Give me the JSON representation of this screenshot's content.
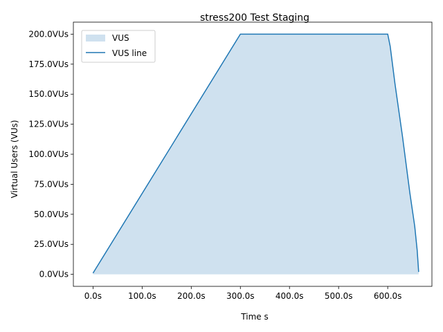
{
  "chart_data": {
    "type": "area",
    "title": "stress200 Test Staging",
    "xlabel": "Time s",
    "ylabel": "Virtual Users (VUs)",
    "xlim": [
      -40,
      690
    ],
    "ylim": [
      -10,
      210
    ],
    "x_ticks": [
      {
        "value": 0,
        "label": "0.0s"
      },
      {
        "value": 100,
        "label": "100.0s"
      },
      {
        "value": 200,
        "label": "200.0s"
      },
      {
        "value": 300,
        "label": "300.0s"
      },
      {
        "value": 400,
        "label": "400.0s"
      },
      {
        "value": 500,
        "label": "500.0s"
      },
      {
        "value": 600,
        "label": "600.0s"
      }
    ],
    "y_ticks": [
      {
        "value": 0,
        "label": "0.0VUs"
      },
      {
        "value": 25,
        "label": "25.0VUs"
      },
      {
        "value": 50,
        "label": "50.0VUs"
      },
      {
        "value": 75,
        "label": "75.0VUs"
      },
      {
        "value": 100,
        "label": "100.0VUs"
      },
      {
        "value": 125,
        "label": "125.0VUs"
      },
      {
        "value": 150,
        "label": "150.0VUs"
      },
      {
        "value": 175,
        "label": "175.0VUs"
      },
      {
        "value": 200,
        "label": "200.0VUs"
      }
    ],
    "grid": false,
    "legend_position": "top-left",
    "series": [
      {
        "name": "VUS",
        "kind": "area",
        "color": "#cfe1ef",
        "x": [
          0,
          300,
          600,
          605,
          615,
          630,
          645,
          655,
          660,
          662,
          663
        ],
        "y": [
          1,
          200,
          200,
          190,
          158,
          115,
          68,
          40,
          20,
          8,
          2
        ]
      },
      {
        "name": "VUS line",
        "kind": "line",
        "color": "#1f77b4",
        "x": [
          0,
          300,
          600,
          605,
          615,
          630,
          645,
          655,
          660,
          662,
          663
        ],
        "y": [
          1,
          200,
          200,
          190,
          158,
          115,
          68,
          40,
          20,
          8,
          2
        ]
      }
    ]
  }
}
